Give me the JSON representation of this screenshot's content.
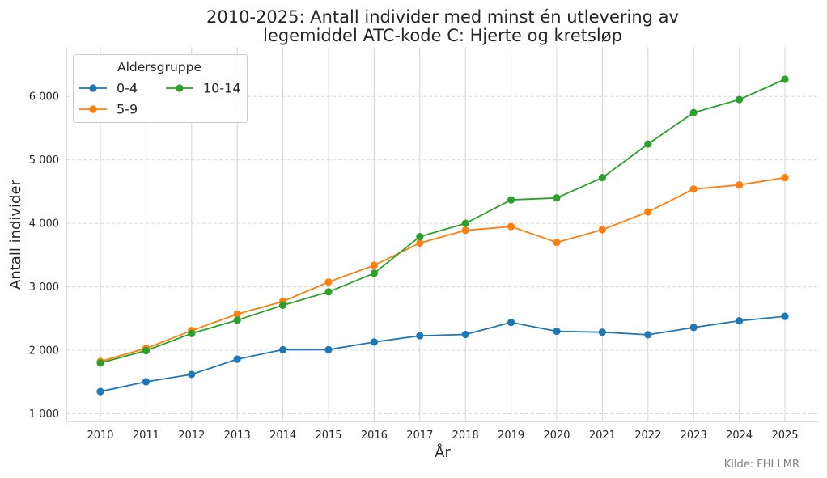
{
  "chart_data": {
    "type": "line",
    "title_lines": [
      "2010-2025: Antall individer med minst én utlevering av",
      "legemiddel ATC-kode C: Hjerte og kretsløp"
    ],
    "xlabel": "År",
    "ylabel": "Antall individer",
    "x": [
      2010,
      2011,
      2012,
      2013,
      2014,
      2015,
      2016,
      2017,
      2018,
      2019,
      2020,
      2021,
      2022,
      2023,
      2024,
      2025
    ],
    "x_tick_labels": [
      "2010",
      "2011",
      "2012",
      "2013",
      "2014",
      "2015",
      "2016",
      "2017",
      "2018",
      "2019",
      "2020",
      "2021",
      "2022",
      "2023",
      "2024",
      "2025"
    ],
    "ylim": [
      880,
      6780
    ],
    "y_ticks": [
      1000,
      2000,
      3000,
      4000,
      5000,
      6000
    ],
    "y_tick_labels": [
      "1 000",
      "2 000",
      "3 000",
      "4 000",
      "5 000",
      "6 000"
    ],
    "grid": {
      "x": "solid",
      "y": "dashed"
    },
    "legend": {
      "title": "Aldersgruppe",
      "placement": "top-left",
      "columns": 2
    },
    "series": [
      {
        "name": "0-4",
        "color": "#1f77b4",
        "values": [
          1350,
          1505,
          1620,
          1860,
          2010,
          2010,
          2130,
          2230,
          2250,
          2440,
          2300,
          2285,
          2245,
          2360,
          2465,
          2535
        ]
      },
      {
        "name": "5-9",
        "color": "#ff7f0e",
        "values": [
          1825,
          2030,
          2310,
          2570,
          2770,
          3075,
          3340,
          3690,
          3890,
          3950,
          3700,
          3900,
          4180,
          4540,
          4605,
          4720
        ]
      },
      {
        "name": "10-14",
        "color": "#2ca02c",
        "values": [
          1800,
          1995,
          2265,
          2475,
          2710,
          2920,
          3215,
          3790,
          4000,
          4370,
          4400,
          4720,
          5250,
          5745,
          5950,
          6270
        ]
      }
    ],
    "source": "Kilde: FHI LMR"
  }
}
